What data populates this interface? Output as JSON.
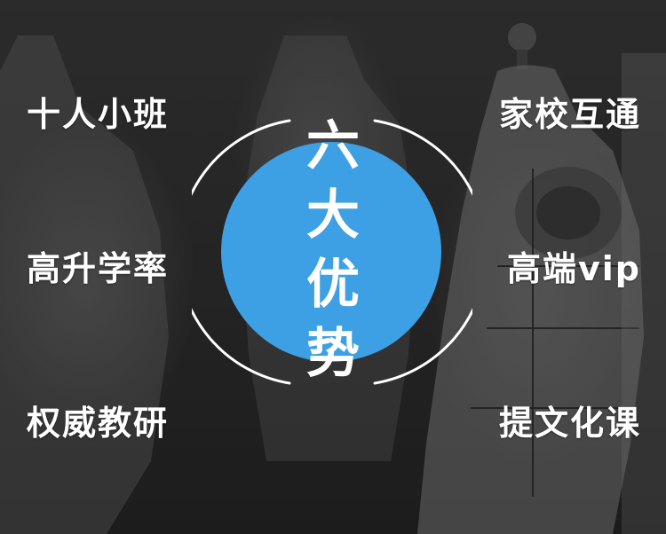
{
  "center": {
    "title": "六大优势",
    "circle_color": "#3ea0e4"
  },
  "features": {
    "left": [
      {
        "label": "十人小班"
      },
      {
        "label": "高升学率"
      },
      {
        "label": "权威教研"
      }
    ],
    "right": [
      {
        "label": "家校互通"
      },
      {
        "label": "高端vip"
      },
      {
        "label": "提文化课"
      }
    ]
  }
}
